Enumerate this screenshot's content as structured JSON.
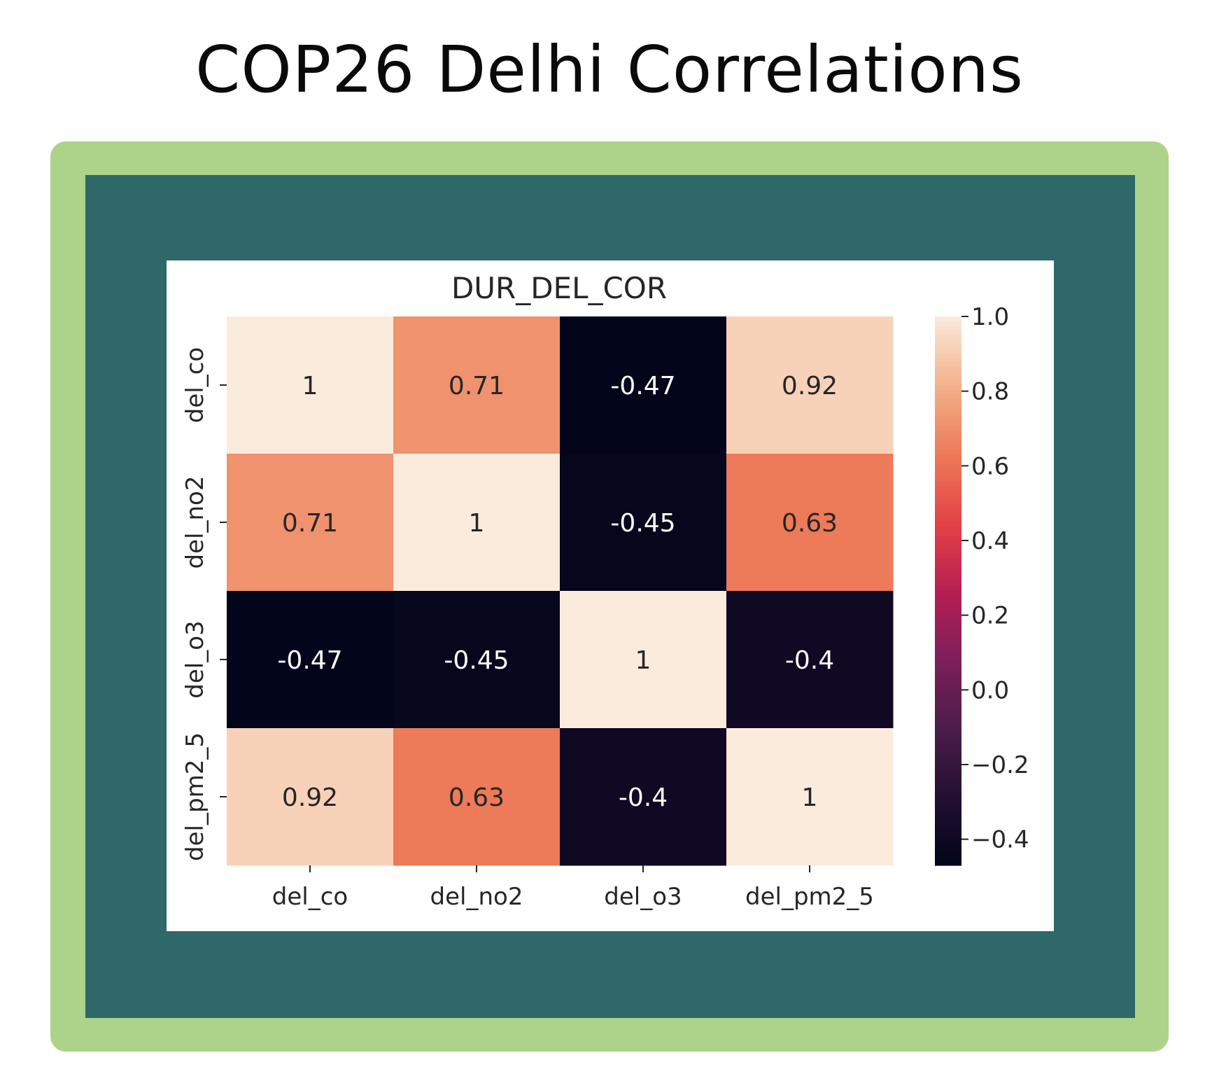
{
  "page": {
    "title": "COP26 Delhi Correlations"
  },
  "colors": {
    "frame": "#add38b",
    "panel": "#2e6868",
    "card": "#ffffff"
  },
  "chart_data": {
    "type": "heatmap",
    "title": "DUR_DEL_COR",
    "x_categories": [
      "del_co",
      "del_no2",
      "del_o3",
      "del_pm2_5"
    ],
    "y_categories": [
      "del_co",
      "del_no2",
      "del_o3",
      "del_pm2_5"
    ],
    "values": [
      [
        1,
        0.71,
        -0.47,
        0.92
      ],
      [
        0.71,
        1,
        -0.45,
        0.63
      ],
      [
        -0.47,
        -0.45,
        1,
        -0.4
      ],
      [
        0.92,
        0.63,
        -0.4,
        1
      ]
    ],
    "value_labels": [
      [
        "1",
        "0.71",
        "-0.47",
        "0.92"
      ],
      [
        "0.71",
        "1",
        "-0.45",
        "0.63"
      ],
      [
        "-0.47",
        "-0.45",
        "1",
        "-0.4"
      ],
      [
        "0.92",
        "0.63",
        "-0.4",
        "1"
      ]
    ],
    "colormap": "rocket",
    "colorbar": {
      "range": [
        -0.47,
        1.0
      ],
      "ticks": [
        1.0,
        0.8,
        0.6,
        0.4,
        0.2,
        0.0,
        -0.2,
        -0.4
      ],
      "tick_labels": [
        "1.0",
        "0.8",
        "0.6",
        "0.4",
        "0.2",
        "0.0",
        "−0.2",
        "−0.4"
      ]
    },
    "annotated": true
  }
}
